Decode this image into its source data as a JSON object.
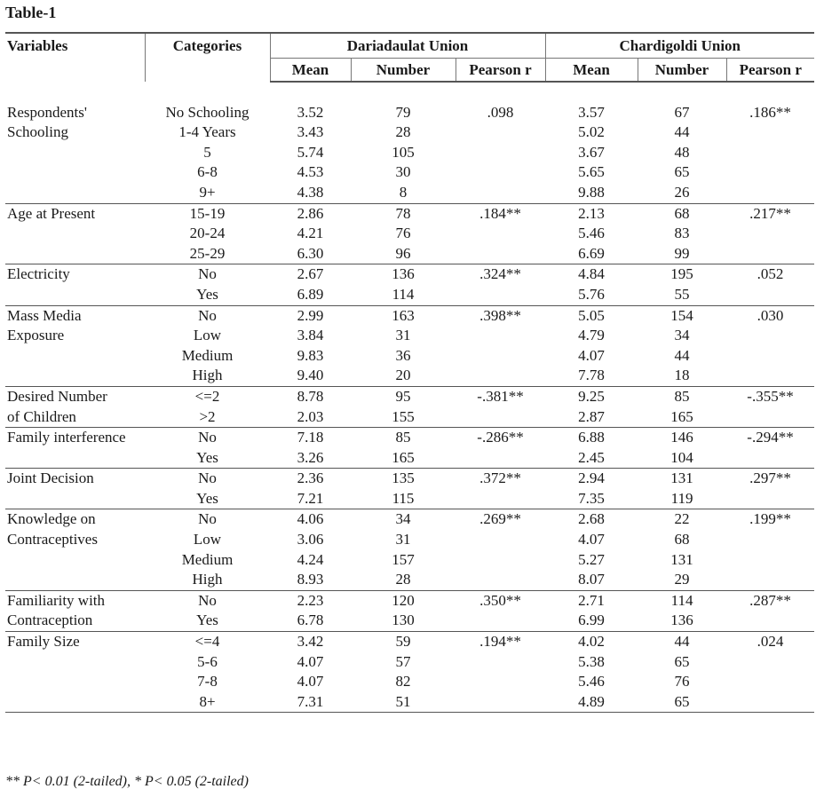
{
  "title": "Table-1",
  "headers": {
    "variables": "Variables",
    "categories": "Categories",
    "group1": "Dariadaulat Union",
    "group2": "Chardigoldi Union",
    "sub": [
      "Mean",
      "Number",
      "Pearson r",
      "Mean",
      "Number",
      "Pearson r"
    ]
  },
  "sections": [
    {
      "var_lines": [
        "Respondents'",
        "Schooling"
      ],
      "rows": [
        {
          "cat": "No Schooling",
          "m1": "3.52",
          "n1": "79",
          "r1": ".098",
          "m2": "3.57",
          "n2": "67",
          "r2": ".186**"
        },
        {
          "cat": "1-4 Years",
          "m1": "3.43",
          "n1": "28",
          "r1": "",
          "m2": "5.02",
          "n2": "44",
          "r2": ""
        },
        {
          "cat": "5",
          "m1": "5.74",
          "n1": "105",
          "r1": "",
          "m2": "3.67",
          "n2": "48",
          "r2": ""
        },
        {
          "cat": "6-8",
          "m1": "4.53",
          "n1": "30",
          "r1": "",
          "m2": "5.65",
          "n2": "65",
          "r2": ""
        },
        {
          "cat": "9+",
          "m1": "4.38",
          "n1": "8",
          "r1": "",
          "m2": "9.88",
          "n2": "26",
          "r2": ""
        }
      ]
    },
    {
      "var_lines": [
        "Age at Present"
      ],
      "rows": [
        {
          "cat": "15-19",
          "m1": "2.86",
          "n1": "78",
          "r1": ".184**",
          "m2": "2.13",
          "n2": "68",
          "r2": ".217**"
        },
        {
          "cat": "20-24",
          "m1": "4.21",
          "n1": "76",
          "r1": "",
          "m2": "5.46",
          "n2": "83",
          "r2": ""
        },
        {
          "cat": "25-29",
          "m1": "6.30",
          "n1": "96",
          "r1": "",
          "m2": "6.69",
          "n2": "99",
          "r2": ""
        }
      ]
    },
    {
      "var_lines": [
        "Electricity"
      ],
      "rows": [
        {
          "cat": "No",
          "m1": "2.67",
          "n1": "136",
          "r1": ".324**",
          "m2": "4.84",
          "n2": "195",
          "r2": ".052"
        },
        {
          "cat": "Yes",
          "m1": "6.89",
          "n1": "114",
          "r1": "",
          "m2": "5.76",
          "n2": "55",
          "r2": ""
        }
      ]
    },
    {
      "var_lines": [
        "Mass Media",
        "Exposure"
      ],
      "rows": [
        {
          "cat": "No",
          "m1": "2.99",
          "n1": "163",
          "r1": ".398**",
          "m2": "5.05",
          "n2": "154",
          "r2": ".030"
        },
        {
          "cat": "Low",
          "m1": "3.84",
          "n1": "31",
          "r1": "",
          "m2": "4.79",
          "n2": "34",
          "r2": ""
        },
        {
          "cat": "Medium",
          "m1": "9.83",
          "n1": "36",
          "r1": "",
          "m2": "4.07",
          "n2": "44",
          "r2": ""
        },
        {
          "cat": "High",
          "m1": "9.40",
          "n1": "20",
          "r1": "",
          "m2": "7.78",
          "n2": "18",
          "r2": ""
        }
      ]
    },
    {
      "var_lines": [
        "Desired Number",
        "of Children"
      ],
      "rows": [
        {
          "cat": "<=2",
          "m1": "8.78",
          "n1": "95",
          "r1": "-.381**",
          "m2": "9.25",
          "n2": "85",
          "r2": "-.355**"
        },
        {
          "cat": ">2",
          "m1": "2.03",
          "n1": "155",
          "r1": "",
          "m2": "2.87",
          "n2": "165",
          "r2": ""
        }
      ]
    },
    {
      "var_lines": [
        "Family interference"
      ],
      "rows": [
        {
          "cat": "No",
          "m1": "7.18",
          "n1": "85",
          "r1": "-.286**",
          "m2": "6.88",
          "n2": "146",
          "r2": "-.294**"
        },
        {
          "cat": "Yes",
          "m1": "3.26",
          "n1": "165",
          "r1": "",
          "m2": "2.45",
          "n2": "104",
          "r2": ""
        }
      ]
    },
    {
      "var_lines": [
        "Joint Decision"
      ],
      "rows": [
        {
          "cat": "No",
          "m1": "2.36",
          "n1": "135",
          "r1": ".372**",
          "m2": "2.94",
          "n2": "131",
          "r2": ".297**"
        },
        {
          "cat": "Yes",
          "m1": "7.21",
          "n1": "115",
          "r1": "",
          "m2": "7.35",
          "n2": "119",
          "r2": ""
        }
      ]
    },
    {
      "var_lines": [
        "Knowledge on",
        "Contraceptives"
      ],
      "rows": [
        {
          "cat": "No",
          "m1": "4.06",
          "n1": "34",
          "r1": ".269**",
          "m2": "2.68",
          "n2": "22",
          "r2": ".199**"
        },
        {
          "cat": "Low",
          "m1": "3.06",
          "n1": "31",
          "r1": "",
          "m2": "4.07",
          "n2": "68",
          "r2": ""
        },
        {
          "cat": "Medium",
          "m1": "4.24",
          "n1": "157",
          "r1": "",
          "m2": "5.27",
          "n2": "131",
          "r2": ""
        },
        {
          "cat": "High",
          "m1": "8.93",
          "n1": "28",
          "r1": "",
          "m2": "8.07",
          "n2": "29",
          "r2": ""
        }
      ]
    },
    {
      "var_lines": [
        "Familiarity with",
        "Contraception"
      ],
      "rows": [
        {
          "cat": "No",
          "m1": "2.23",
          "n1": "120",
          "r1": ".350**",
          "m2": "2.71",
          "n2": "114",
          "r2": ".287**"
        },
        {
          "cat": "Yes",
          "m1": "6.78",
          "n1": "130",
          "r1": "",
          "m2": "6.99",
          "n2": "136",
          "r2": ""
        }
      ]
    },
    {
      "var_lines": [
        "Family Size"
      ],
      "rows": [
        {
          "cat": "<=4",
          "m1": "3.42",
          "n1": "59",
          "r1": ".194**",
          "m2": "4.02",
          "n2": "44",
          "r2": ".024"
        },
        {
          "cat": "5-6",
          "m1": "4.07",
          "n1": "57",
          "r1": "",
          "m2": "5.38",
          "n2": "65",
          "r2": ""
        },
        {
          "cat": "7-8",
          "m1": "4.07",
          "n1": "82",
          "r1": "",
          "m2": "5.46",
          "n2": "76",
          "r2": ""
        },
        {
          "cat": "8+",
          "m1": "7.31",
          "n1": "51",
          "r1": "",
          "m2": "4.89",
          "n2": "65",
          "r2": ""
        }
      ]
    }
  ],
  "footnote": "** P< 0.01 (2-tailed),  * P< 0.05 (2-tailed)"
}
